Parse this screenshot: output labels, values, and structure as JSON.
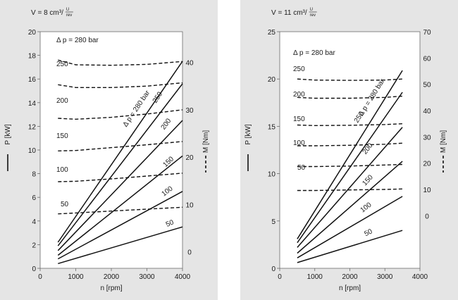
{
  "chart_data": [
    {
      "type": "line",
      "title": "V = 8 cm³/",
      "title_unit_num": "U",
      "title_unit_den": "rev",
      "xlabel": "n [rpm]",
      "ylabel_left": "P [kW]",
      "ylabel_right": "M [Nm]",
      "xlim": [
        0,
        4000
      ],
      "ylim_left": [
        0,
        20
      ],
      "ylim_right": [
        -3.5,
        46.5
      ],
      "x_ticks": [
        0,
        1000,
        2000,
        3000,
        4000
      ],
      "x_tick_labels": [
        "0",
        "1000",
        "2000",
        "3000",
        "4000"
      ],
      "y_left_ticks": [
        0,
        2,
        4,
        6,
        8,
        10,
        12,
        14,
        16,
        18,
        20
      ],
      "y_left_tick_labels": [
        "0",
        "2",
        "4",
        "6",
        "8",
        "10",
        "12",
        "14",
        "16",
        "18",
        "20"
      ],
      "y_right_ticks": [
        0,
        10,
        20,
        30,
        40
      ],
      "y_right_tick_labels": [
        "0",
        "10",
        "20",
        "30",
        "40"
      ],
      "grid": false,
      "power_series": [
        {
          "label": "Δ p = 280 bar",
          "points": [
            [
              500,
              2.2
            ],
            [
              4000,
              17.5
            ]
          ]
        },
        {
          "label": "250",
          "points": [
            [
              500,
              1.9
            ],
            [
              4000,
              15.6
            ]
          ]
        },
        {
          "label": "200",
          "points": [
            [
              500,
              1.5
            ],
            [
              4000,
              12.5
            ]
          ]
        },
        {
          "label": "150",
          "points": [
            [
              500,
              1.1
            ],
            [
              4000,
              9.5
            ]
          ]
        },
        {
          "label": "100",
          "points": [
            [
              500,
              0.8
            ],
            [
              4000,
              6.5
            ]
          ]
        },
        {
          "label": "50",
          "points": [
            [
              500,
              0.4
            ],
            [
              4000,
              3.5
            ]
          ]
        }
      ],
      "torque_series": [
        {
          "label": "Δ p = 280 bar",
          "points": [
            [
              500,
              40.5
            ],
            [
              1000,
              39.5
            ],
            [
              2000,
              39.4
            ],
            [
              3000,
              39.6
            ],
            [
              4000,
              40.2
            ]
          ]
        },
        {
          "label": "250",
          "points": [
            [
              500,
              35.3
            ],
            [
              1000,
              34.7
            ],
            [
              2000,
              34.7
            ],
            [
              3000,
              35
            ],
            [
              4000,
              35.7
            ]
          ]
        },
        {
          "label": "200",
          "points": [
            [
              500,
              28.2
            ],
            [
              1000,
              28
            ],
            [
              2000,
              28.4
            ],
            [
              3000,
              29.1
            ],
            [
              4000,
              30
            ]
          ]
        },
        {
          "label": "150",
          "points": [
            [
              500,
              21.3
            ],
            [
              1000,
              21.4
            ],
            [
              2000,
              22
            ],
            [
              3000,
              22.6
            ],
            [
              4000,
              23.3
            ]
          ]
        },
        {
          "label": "100",
          "points": [
            [
              500,
              14.8
            ],
            [
              1000,
              14.9
            ],
            [
              2000,
              15.4
            ],
            [
              3000,
              16
            ],
            [
              4000,
              16.6
            ]
          ]
        },
        {
          "label": "50",
          "points": [
            [
              500,
              8
            ],
            [
              1000,
              8.2
            ],
            [
              2000,
              8.6
            ],
            [
              3000,
              9
            ],
            [
              4000,
              9.4
            ]
          ]
        }
      ]
    },
    {
      "type": "line",
      "title": "V = 11 cm³/",
      "title_unit_num": "U",
      "title_unit_den": "rev",
      "xlabel": "n [rpm]",
      "ylabel_left": "P [kW]",
      "ylabel_right": "M [Nm]",
      "xlim": [
        0,
        4000
      ],
      "ylim_left": [
        0,
        25
      ],
      "ylim_right": [
        -20,
        70
      ],
      "x_ticks": [
        0,
        1000,
        2000,
        3000,
        4000
      ],
      "x_tick_labels": [
        "0",
        "1000",
        "2000",
        "3000",
        "4000"
      ],
      "y_left_ticks": [
        0,
        5,
        10,
        15,
        20,
        25
      ],
      "y_left_tick_labels": [
        "0",
        "5",
        "10",
        "15",
        "20",
        "25"
      ],
      "y_right_ticks": [
        0,
        10,
        20,
        30,
        40,
        50,
        60,
        70
      ],
      "y_right_tick_labels": [
        "0",
        "10",
        "20",
        "30",
        "40",
        "50",
        "60",
        "70"
      ],
      "grid": false,
      "power_series": [
        {
          "label": "Δ p = 280 bar",
          "points": [
            [
              500,
              3.1
            ],
            [
              3500,
              20.9
            ]
          ]
        },
        {
          "label": "250",
          "points": [
            [
              500,
              2.7
            ],
            [
              3500,
              18.6
            ]
          ]
        },
        {
          "label": "200",
          "points": [
            [
              500,
              2.2
            ],
            [
              3500,
              14.9
            ]
          ]
        },
        {
          "label": "150",
          "points": [
            [
              500,
              1.6
            ],
            [
              3500,
              11.3
            ]
          ]
        },
        {
          "label": "100",
          "points": [
            [
              500,
              1.1
            ],
            [
              3500,
              7.6
            ]
          ]
        },
        {
          "label": "50",
          "points": [
            [
              500,
              0.6
            ],
            [
              3500,
              4
            ]
          ]
        }
      ],
      "torque_series": [
        {
          "label": "Δ p = 280 bar",
          "points": [
            [
              500,
              52
            ],
            [
              1000,
              51.6
            ],
            [
              2000,
              51.5
            ],
            [
              3000,
              51.6
            ],
            [
              3500,
              52
            ]
          ]
        },
        {
          "label": "250",
          "points": [
            [
              500,
              45
            ],
            [
              1000,
              44.7
            ],
            [
              2000,
              44.7
            ],
            [
              3000,
              45
            ],
            [
              3500,
              45.5
            ]
          ]
        },
        {
          "label": "200",
          "points": [
            [
              500,
              34.5
            ],
            [
              1000,
              34.3
            ],
            [
              2000,
              34.4
            ],
            [
              3000,
              34.7
            ],
            [
              3500,
              35
            ]
          ]
        },
        {
          "label": "150",
          "points": [
            [
              500,
              26.6
            ],
            [
              1000,
              26.6
            ],
            [
              2000,
              26.8
            ],
            [
              3000,
              27.2
            ],
            [
              3500,
              27.6
            ]
          ]
        },
        {
          "label": "100",
          "points": [
            [
              500,
              18.7
            ],
            [
              1000,
              18.7
            ],
            [
              2000,
              18.9
            ],
            [
              3000,
              19.3
            ],
            [
              3500,
              19.5
            ]
          ]
        },
        {
          "label": "50",
          "points": [
            [
              500,
              9.6
            ],
            [
              1000,
              9.6
            ],
            [
              2000,
              9.8
            ],
            [
              3000,
              10
            ],
            [
              3500,
              10.2
            ]
          ]
        }
      ]
    }
  ]
}
